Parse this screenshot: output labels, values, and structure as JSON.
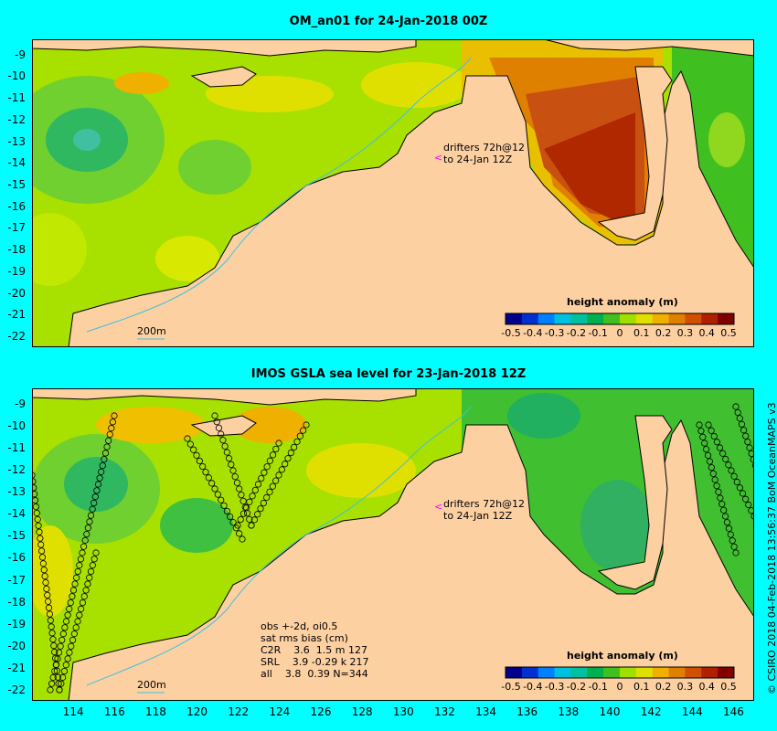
{
  "panels": [
    {
      "title": "OM_an01 for 24-Jan-2018 00Z",
      "drifter_note_line1": "drifters 72h@12",
      "drifter_note_line2": "to 24-Jan 12Z",
      "isobath_label": "200m",
      "legend_title": "height anomaly (m)"
    },
    {
      "title": "IMOS GSLA sea level  for 23-Jan-2018 12Z",
      "drifter_note_line1": "drifters 72h@12",
      "drifter_note_line2": "to 24-Jan 12Z",
      "isobath_label": "200m",
      "legend_title": "height anomaly (m)",
      "stats": [
        "obs +-2d, oi0.5",
        "sat rms bias (cm)",
        "C2R    3.6  1.5 m 127",
        "SRL    3.9 -0.29 k 217",
        "all    3.8  0.39 N=344"
      ]
    }
  ],
  "map_axes": {
    "lon_range": [
      112,
      147
    ],
    "lat_range": [
      -22.5,
      -8.3
    ],
    "lon_ticks": [
      "114",
      "116",
      "118",
      "120",
      "122",
      "124",
      "126",
      "128",
      "130",
      "132",
      "134",
      "136",
      "138",
      "140",
      "142",
      "144",
      "146"
    ],
    "lat_ticks": [
      "-9",
      "-10",
      "-11",
      "-12",
      "-13",
      "-14",
      "-15",
      "-16",
      "-17",
      "-18",
      "-19",
      "-20",
      "-21",
      "-22"
    ]
  },
  "colorbar": {
    "ticks": [
      "-0.5",
      "-0.4",
      "-0.3",
      "-0.2",
      "-0.1",
      "0",
      "0.1",
      "0.2",
      "0.3",
      "0.4",
      "0.5"
    ],
    "colors": [
      "#00008b",
      "#0030d0",
      "#0080ff",
      "#00c0e0",
      "#00c0a0",
      "#00b050",
      "#40c020",
      "#a0e000",
      "#e0e000",
      "#f0b000",
      "#e08000",
      "#d05000",
      "#b02000",
      "#800000"
    ]
  },
  "credit": "© CSIRO 2018  04-Feb-2018 13:56:37 BoM OceanMAPS v3",
  "colors": {
    "land": "#fdd0a2",
    "frame_bg": "#00ffff",
    "field_base": "#a8e000",
    "drifter_arrow": "#ff00ff"
  }
}
